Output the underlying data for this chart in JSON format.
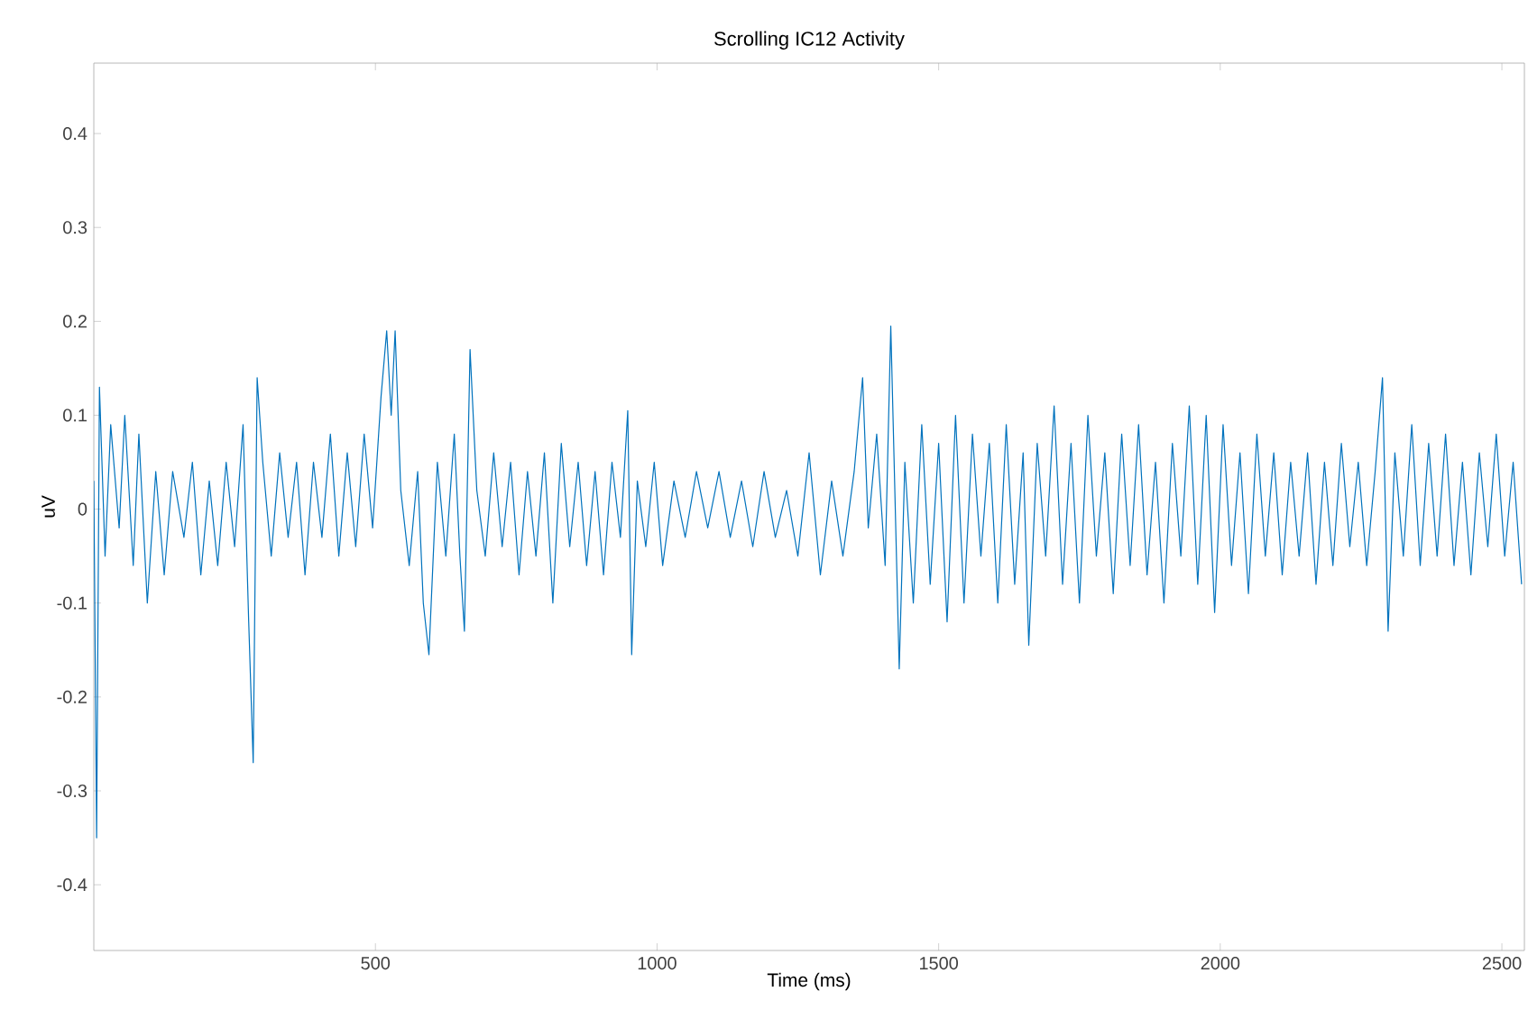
{
  "chart_data": {
    "type": "line",
    "title": "Scrolling IC12 Activity",
    "xlabel": "Time (ms)",
    "ylabel": "uV",
    "xlim": [
      0,
      2540
    ],
    "ylim": [
      -0.47,
      0.475
    ],
    "xticks": [
      500,
      1000,
      1500,
      2000,
      2500
    ],
    "yticks": [
      -0.4,
      -0.3,
      -0.2,
      -0.1,
      0,
      0.1,
      0.2,
      0.3,
      0.4
    ],
    "grid": false,
    "marker": "none",
    "line_style": "solid",
    "series": [
      {
        "color": "#0072bd",
        "x": [
          0,
          5,
          10,
          20,
          30,
          45,
          55,
          70,
          80,
          95,
          110,
          125,
          140,
          160,
          175,
          190,
          205,
          220,
          235,
          250,
          265,
          275,
          283,
          290,
          300,
          315,
          330,
          345,
          360,
          375,
          390,
          405,
          420,
          435,
          450,
          465,
          480,
          495,
          510,
          520,
          528,
          535,
          545,
          560,
          575,
          585,
          595,
          610,
          625,
          640,
          650,
          658,
          668,
          680,
          695,
          710,
          725,
          740,
          755,
          770,
          785,
          800,
          815,
          830,
          845,
          860,
          875,
          890,
          905,
          920,
          935,
          948,
          955,
          965,
          980,
          995,
          1010,
          1030,
          1050,
          1070,
          1090,
          1110,
          1130,
          1150,
          1170,
          1190,
          1210,
          1230,
          1250,
          1270,
          1290,
          1310,
          1330,
          1350,
          1365,
          1375,
          1390,
          1405,
          1415,
          1430,
          1440,
          1455,
          1470,
          1485,
          1500,
          1515,
          1530,
          1545,
          1560,
          1575,
          1590,
          1605,
          1620,
          1635,
          1650,
          1660,
          1675,
          1690,
          1705,
          1720,
          1735,
          1750,
          1765,
          1780,
          1795,
          1810,
          1825,
          1840,
          1855,
          1870,
          1885,
          1900,
          1915,
          1930,
          1945,
          1960,
          1975,
          1990,
          2005,
          2020,
          2035,
          2050,
          2065,
          2080,
          2095,
          2110,
          2125,
          2140,
          2155,
          2170,
          2185,
          2200,
          2215,
          2230,
          2245,
          2260,
          2275,
          2288,
          2298,
          2310,
          2325,
          2340,
          2355,
          2370,
          2385,
          2400,
          2415,
          2430,
          2445,
          2460,
          2475,
          2490,
          2505,
          2520,
          2535
        ],
        "values": [
          0.03,
          -0.35,
          0.13,
          -0.05,
          0.09,
          -0.02,
          0.1,
          -0.06,
          0.08,
          -0.1,
          0.04,
          -0.07,
          0.04,
          -0.03,
          0.05,
          -0.07,
          0.03,
          -0.06,
          0.05,
          -0.04,
          0.09,
          -0.12,
          -0.27,
          0.14,
          0.05,
          -0.05,
          0.06,
          -0.03,
          0.05,
          -0.07,
          0.05,
          -0.03,
          0.08,
          -0.05,
          0.06,
          -0.04,
          0.08,
          -0.02,
          0.12,
          0.19,
          0.1,
          0.19,
          0.02,
          -0.06,
          0.04,
          -0.1,
          -0.155,
          0.05,
          -0.05,
          0.08,
          -0.05,
          -0.13,
          0.17,
          0.02,
          -0.05,
          0.06,
          -0.04,
          0.05,
          -0.07,
          0.04,
          -0.05,
          0.06,
          -0.1,
          0.07,
          -0.04,
          0.05,
          -0.06,
          0.04,
          -0.07,
          0.05,
          -0.03,
          0.105,
          -0.155,
          0.03,
          -0.04,
          0.05,
          -0.06,
          0.03,
          -0.03,
          0.04,
          -0.02,
          0.04,
          -0.03,
          0.03,
          -0.04,
          0.04,
          -0.03,
          0.02,
          -0.05,
          0.06,
          -0.07,
          0.03,
          -0.05,
          0.04,
          0.14,
          -0.02,
          0.08,
          -0.06,
          0.195,
          -0.17,
          0.05,
          -0.1,
          0.09,
          -0.08,
          0.07,
          -0.12,
          0.1,
          -0.1,
          0.08,
          -0.05,
          0.07,
          -0.1,
          0.09,
          -0.08,
          0.06,
          -0.145,
          0.07,
          -0.05,
          0.11,
          -0.08,
          0.07,
          -0.1,
          0.1,
          -0.05,
          0.06,
          -0.09,
          0.08,
          -0.06,
          0.09,
          -0.07,
          0.05,
          -0.1,
          0.07,
          -0.05,
          0.11,
          -0.08,
          0.1,
          -0.11,
          0.09,
          -0.06,
          0.06,
          -0.09,
          0.08,
          -0.05,
          0.06,
          -0.07,
          0.05,
          -0.05,
          0.06,
          -0.08,
          0.05,
          -0.06,
          0.07,
          -0.04,
          0.05,
          -0.06,
          0.04,
          0.14,
          -0.13,
          0.06,
          -0.05,
          0.09,
          -0.06,
          0.07,
          -0.05,
          0.08,
          -0.06,
          0.05,
          -0.07,
          0.06,
          -0.04,
          0.08,
          -0.05,
          0.05,
          -0.08
        ]
      }
    ]
  }
}
